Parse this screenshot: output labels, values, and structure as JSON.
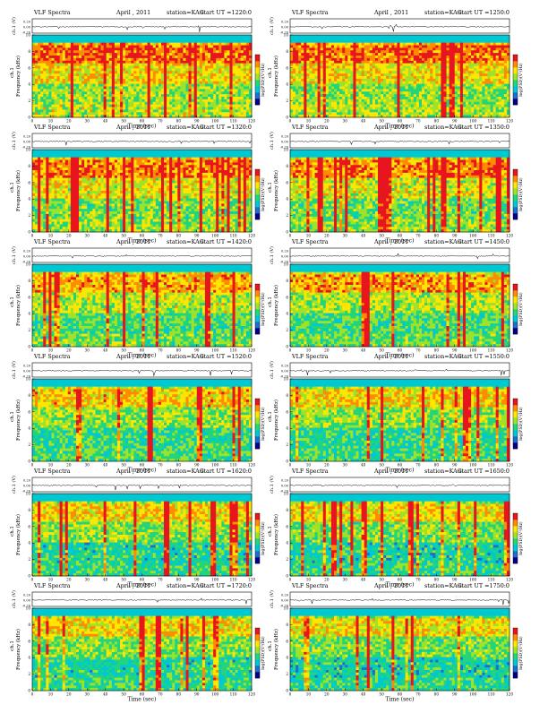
{
  "chart_data": {
    "type": "heatmap",
    "panel_template": {
      "header_left": "VLF Spectra",
      "header_date": "April , 2011",
      "header_station": "station=KAG",
      "header_ut_label": "start  UT  =",
      "amp_ylabel": "ch.1 (V)",
      "amp_ticks": [
        "0.20",
        "0.00",
        "-0.20"
      ],
      "spec_ylabel_top": "ch.1",
      "spec_ylabel": "Frequency (kHz)",
      "y_ticks": [
        0,
        2,
        4,
        6,
        8,
        10
      ],
      "ylim": [
        0,
        10
      ],
      "x_ticks": [
        0,
        10,
        20,
        30,
        40,
        50,
        60,
        70,
        80,
        90,
        100,
        110,
        120
      ],
      "xlim": [
        0,
        120
      ],
      "xlabel": "Time (sec)",
      "colorbar_label": "log(PSD)(V²/Hz)"
    },
    "panels": [
      {
        "start_ut": "1220:0",
        "intensity": 0.95
      },
      {
        "start_ut": "1250:0",
        "intensity": 0.92
      },
      {
        "start_ut": "1320:0",
        "intensity": 0.85
      },
      {
        "start_ut": "1350:0",
        "intensity": 0.8
      },
      {
        "start_ut": "1420:0",
        "intensity": 0.72
      },
      {
        "start_ut": "1450:0",
        "intensity": 0.7
      },
      {
        "start_ut": "1520:0",
        "intensity": 0.62
      },
      {
        "start_ut": "1550:0",
        "intensity": 0.58
      },
      {
        "start_ut": "1620:0",
        "intensity": 0.55
      },
      {
        "start_ut": "1650:0",
        "intensity": 0.52
      },
      {
        "start_ut": "1720:0",
        "intensity": 0.55
      },
      {
        "start_ut": "1750:0",
        "intensity": 0.5
      }
    ],
    "colormap": [
      "#00008b",
      "#1e6ed0",
      "#00c8d2",
      "#22d47a",
      "#9ee22a",
      "#ffe600",
      "#ff8c00",
      "#e8141e"
    ]
  }
}
